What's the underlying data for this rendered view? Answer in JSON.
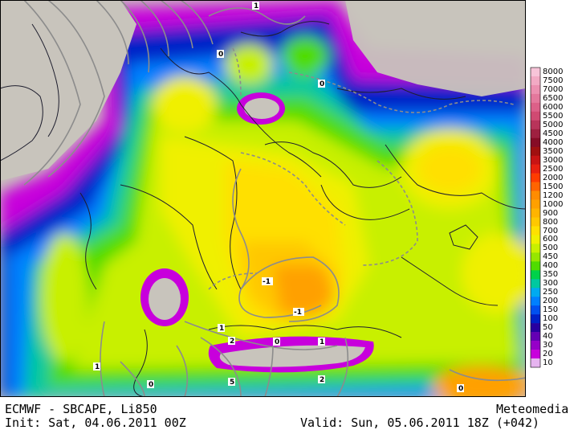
{
  "footer": {
    "title_left": "ECMWF - SBCAPE, Li850",
    "init": "Init: Sat, 04.06.2011 00Z",
    "brand": "Meteomedia",
    "valid": "Valid: Sun, 05.06.2011 18Z (+042)"
  },
  "legend": {
    "items": [
      {
        "label": "8000",
        "color": "#f7c4d8"
      },
      {
        "label": "7500",
        "color": "#f2aac4"
      },
      {
        "label": "7000",
        "color": "#ec90b0"
      },
      {
        "label": "6500",
        "color": "#e4789c"
      },
      {
        "label": "6000",
        "color": "#dc6088"
      },
      {
        "label": "5500",
        "color": "#d04a72"
      },
      {
        "label": "5000",
        "color": "#b8345a"
      },
      {
        "label": "4500",
        "color": "#9e2040"
      },
      {
        "label": "4000",
        "color": "#860c26"
      },
      {
        "label": "3500",
        "color": "#a01010"
      },
      {
        "label": "3000",
        "color": "#c81414"
      },
      {
        "label": "2500",
        "color": "#e82010"
      },
      {
        "label": "2000",
        "color": "#ff3c00"
      },
      {
        "label": "1500",
        "color": "#ff6400"
      },
      {
        "label": "1200",
        "color": "#ff8c00"
      },
      {
        "label": "1000",
        "color": "#ffa000"
      },
      {
        "label": "900",
        "color": "#ffb400"
      },
      {
        "label": "800",
        "color": "#ffc800"
      },
      {
        "label": "700",
        "color": "#ffe000"
      },
      {
        "label": "600",
        "color": "#f0f000"
      },
      {
        "label": "500",
        "color": "#c8f000"
      },
      {
        "label": "450",
        "color": "#96e600"
      },
      {
        "label": "400",
        "color": "#50dc00"
      },
      {
        "label": "350",
        "color": "#00d24a"
      },
      {
        "label": "300",
        "color": "#00c8a0"
      },
      {
        "label": "250",
        "color": "#00aaf0"
      },
      {
        "label": "200",
        "color": "#0080ff"
      },
      {
        "label": "150",
        "color": "#0050f0"
      },
      {
        "label": "100",
        "color": "#0020c8"
      },
      {
        "label": "50",
        "color": "#2800a0"
      },
      {
        "label": "40",
        "color": "#6400b4"
      },
      {
        "label": "30",
        "color": "#9600c8"
      },
      {
        "label": "20",
        "color": "#c800dc"
      },
      {
        "label": "10",
        "color": "#e6b4f0"
      }
    ]
  },
  "li_contour_labels": [
    "1",
    "0",
    "0",
    "-1",
    "-1",
    "1",
    "2",
    "0",
    "1",
    "1",
    "0",
    "5",
    "2",
    "0"
  ],
  "colors": {
    "land_background": "#c8c4bc",
    "sea_background": "#c8c4bc",
    "contour": "#8c8c8c",
    "border": "#1e1e2e"
  }
}
